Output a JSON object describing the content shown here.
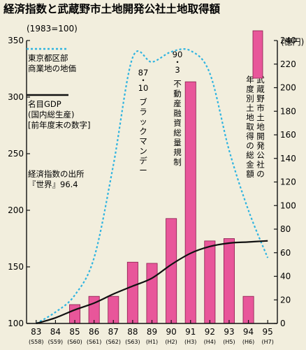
{
  "chart_data": {
    "type": "bar",
    "title": "経済指数と武蔵野市土地開発公社土地取得額",
    "subtitle": "(1983=100)",
    "right_axis_unit": "(億円)",
    "categories": [
      "83",
      "84",
      "85",
      "86",
      "87",
      "88",
      "89",
      "90",
      "91",
      "92",
      "93",
      "94",
      "95"
    ],
    "categories_sub": [
      "(S58)",
      "(S59)",
      "(S60)",
      "(S61)",
      "(S62)",
      "(S63)",
      "(H1)",
      "(H2)",
      "(H3)",
      "(H4)",
      "(H5)",
      "(H6)",
      "(H7)"
    ],
    "x": [
      1983,
      1984,
      1985,
      1986,
      1987,
      1988,
      1989,
      1990,
      1991,
      1992,
      1993,
      1994,
      1995
    ],
    "left_axis": {
      "ylim": [
        100,
        350
      ],
      "ticks": [
        "100",
        "150",
        "200",
        "250",
        "300",
        "350"
      ]
    },
    "right_axis": {
      "ylim": [
        0,
        240
      ],
      "ticks": [
        "0",
        "20",
        "40",
        "60",
        "80",
        "100",
        "120",
        "140",
        "160",
        "180",
        "200",
        "220",
        "240"
      ]
    },
    "series": [
      {
        "name": "武蔵野市土地開発公社の年度別土地取得の総金額",
        "kind": "bar",
        "axis": "right",
        "color": "#e8569a",
        "x": [
          1985,
          1986,
          1987,
          1988,
          1989,
          1990,
          1991,
          1992,
          1993,
          1994
        ],
        "values": [
          16,
          23,
          23,
          52,
          51,
          89,
          205,
          70,
          72,
          23
        ]
      },
      {
        "name": "名目GDP (国内総生産) [前年度末の数字]",
        "kind": "line",
        "axis": "left",
        "color": "#111111",
        "x": [
          1983,
          1984,
          1985,
          1986,
          1987,
          1988,
          1989,
          1990,
          1991,
          1992,
          1993,
          1994,
          1995
        ],
        "values": [
          100,
          105,
          112,
          118,
          126,
          133,
          140,
          152,
          162,
          168,
          171,
          172,
          173
        ]
      },
      {
        "name": "東京都区部 商業地の地価",
        "kind": "line",
        "axis": "left",
        "color": "#2fb4e0",
        "x": [
          1983,
          1984,
          1985,
          1986,
          1987,
          1988,
          1989,
          1990,
          1991,
          1992,
          1993,
          1994,
          1995
        ],
        "values": [
          100,
          110,
          125,
          158,
          240,
          335,
          331,
          340,
          341,
          321,
          253,
          200,
          158
        ]
      }
    ],
    "annotations": [
      {
        "year": 1988.6,
        "text": "87・10ブラックマンデー"
      },
      {
        "year": 1991,
        "text": "90・3不動産融資総量規制"
      }
    ],
    "source_note": [
      "経済指数の出所",
      "『世界』96.4"
    ],
    "grid": false
  },
  "legend": {
    "land_price": [
      "東京都区部",
      "商業地の地価"
    ],
    "gdp": [
      "名目GDP",
      "(国内総生産)",
      "[前年度末の数字]"
    ]
  },
  "annotation_text": {
    "black_monday_date": [
      "87",
      "・",
      "10"
    ],
    "black_monday": [
      "ブ",
      "ラ",
      "ッ",
      "ク",
      "マ",
      "ン",
      "デ",
      "ー"
    ],
    "regulation_date": [
      "90",
      "・",
      "3"
    ],
    "regulation": [
      "不",
      "動",
      "産",
      "融",
      "資",
      "総",
      "量",
      "規",
      "制"
    ],
    "bar_label": [
      [
        "武",
        "蔵",
        "野",
        "市",
        "土",
        "地",
        "開",
        "発",
        "公",
        "社",
        "の"
      ],
      [
        "年",
        "度",
        "別",
        "土",
        "地",
        "取",
        "得",
        "の",
        "総",
        "金",
        "額"
      ]
    ]
  },
  "colors": {
    "background": "#f2eedd",
    "bar": "#e8569a",
    "bar_edge": "#8a1c4c",
    "gdp_line": "#111111",
    "land_line": "#2fb4e0"
  }
}
